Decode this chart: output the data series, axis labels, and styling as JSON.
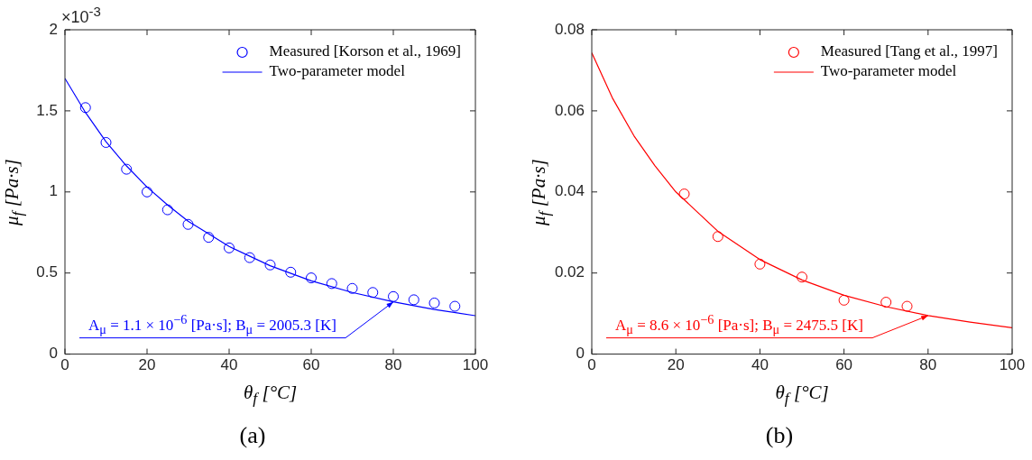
{
  "chart_data": [
    {
      "type": "scatter",
      "xlabel": "θ$_{f}$ [°C]",
      "ylabel": "μ$_{f}$ [Pa·s]",
      "legend": "top right",
      "grid": false,
      "xlim": [
        0,
        100
      ],
      "xticks": [
        0,
        20,
        40,
        60,
        80,
        100
      ],
      "ylim": [
        0,
        2
      ],
      "yticks": [
        0,
        0.5,
        1,
        1.5,
        2
      ],
      "series": [
        {
          "name": "Measured [Korson et al., 1969]",
          "type": "scatter",
          "marker": "circle",
          "color": "#0000ff",
          "x": [
            5,
            10,
            15,
            20,
            25,
            30,
            35,
            40,
            45,
            50,
            55,
            60,
            65,
            70,
            75,
            80,
            85,
            90,
            95
          ],
          "values": [
            1.52,
            1.305,
            1.14,
            1,
            0.89,
            0.8,
            0.72,
            0.655,
            0.595,
            0.55,
            0.505,
            0.47,
            0.435,
            0.405,
            0.38,
            0.355,
            0.335,
            0.315,
            0.295
          ]
        },
        {
          "name": "Two-parameter model",
          "type": "line",
          "color": "#0000ff",
          "x": [
            0,
            5,
            10,
            15,
            20,
            25,
            30,
            40,
            50,
            60,
            70,
            80,
            90,
            100
          ],
          "values": [
            1.7,
            1.49,
            1.31,
            1.16,
            1.03,
            0.92,
            0.82,
            0.664,
            0.545,
            0.452,
            0.38,
            0.322,
            0.275,
            0.237
          ]
        }
      ],
      "annotations": [
        "×10$^{-3}$",
        {
          "text": "A$_{μ}$ = 1.1 × 10$^{−6}$ [Pa·s];  B$_{μ}$ = 2005.3 [K]",
          "x": 80,
          "y": 0.322
        },
        "(a)"
      ]
    },
    {
      "type": "scatter",
      "xlabel": "θ$_{f}$ [°C]",
      "ylabel": "μ$_{f}$ [Pa·s]",
      "legend": "top right",
      "grid": false,
      "xlim": [
        0,
        100
      ],
      "xticks": [
        0,
        20,
        40,
        60,
        80,
        100
      ],
      "ylim": [
        0,
        0.08
      ],
      "yticks": [
        0,
        0.02,
        0.04,
        0.06,
        0.08
      ],
      "series": [
        {
          "name": "Measured [Tang et al., 1997]",
          "type": "scatter",
          "marker": "circle",
          "color": "#ff0000",
          "x": [
            22,
            30,
            40,
            50,
            60,
            70,
            75
          ],
          "values": [
            0.0395,
            0.029,
            0.0222,
            0.019,
            0.0133,
            0.0128,
            0.0118
          ]
        },
        {
          "name": "Two-parameter model",
          "type": "line",
          "color": "#ff0000",
          "x": [
            0,
            5,
            10,
            15,
            20,
            30,
            40,
            50,
            60,
            70,
            80,
            90,
            100
          ],
          "values": [
            0.0743,
            0.063,
            0.0539,
            0.0465,
            0.04,
            0.0303,
            0.0233,
            0.0183,
            0.0145,
            0.0117,
            0.0095,
            0.0079,
            0.0065
          ]
        }
      ],
      "annotations": [
        {
          "text": "A$_{μ}$ = 8.6 × 10$^{−6}$ [Pa·s];  B$_{μ}$ = 2475.5 [K]",
          "x": 80,
          "y": 0.0095
        },
        "(b)"
      ]
    }
  ]
}
